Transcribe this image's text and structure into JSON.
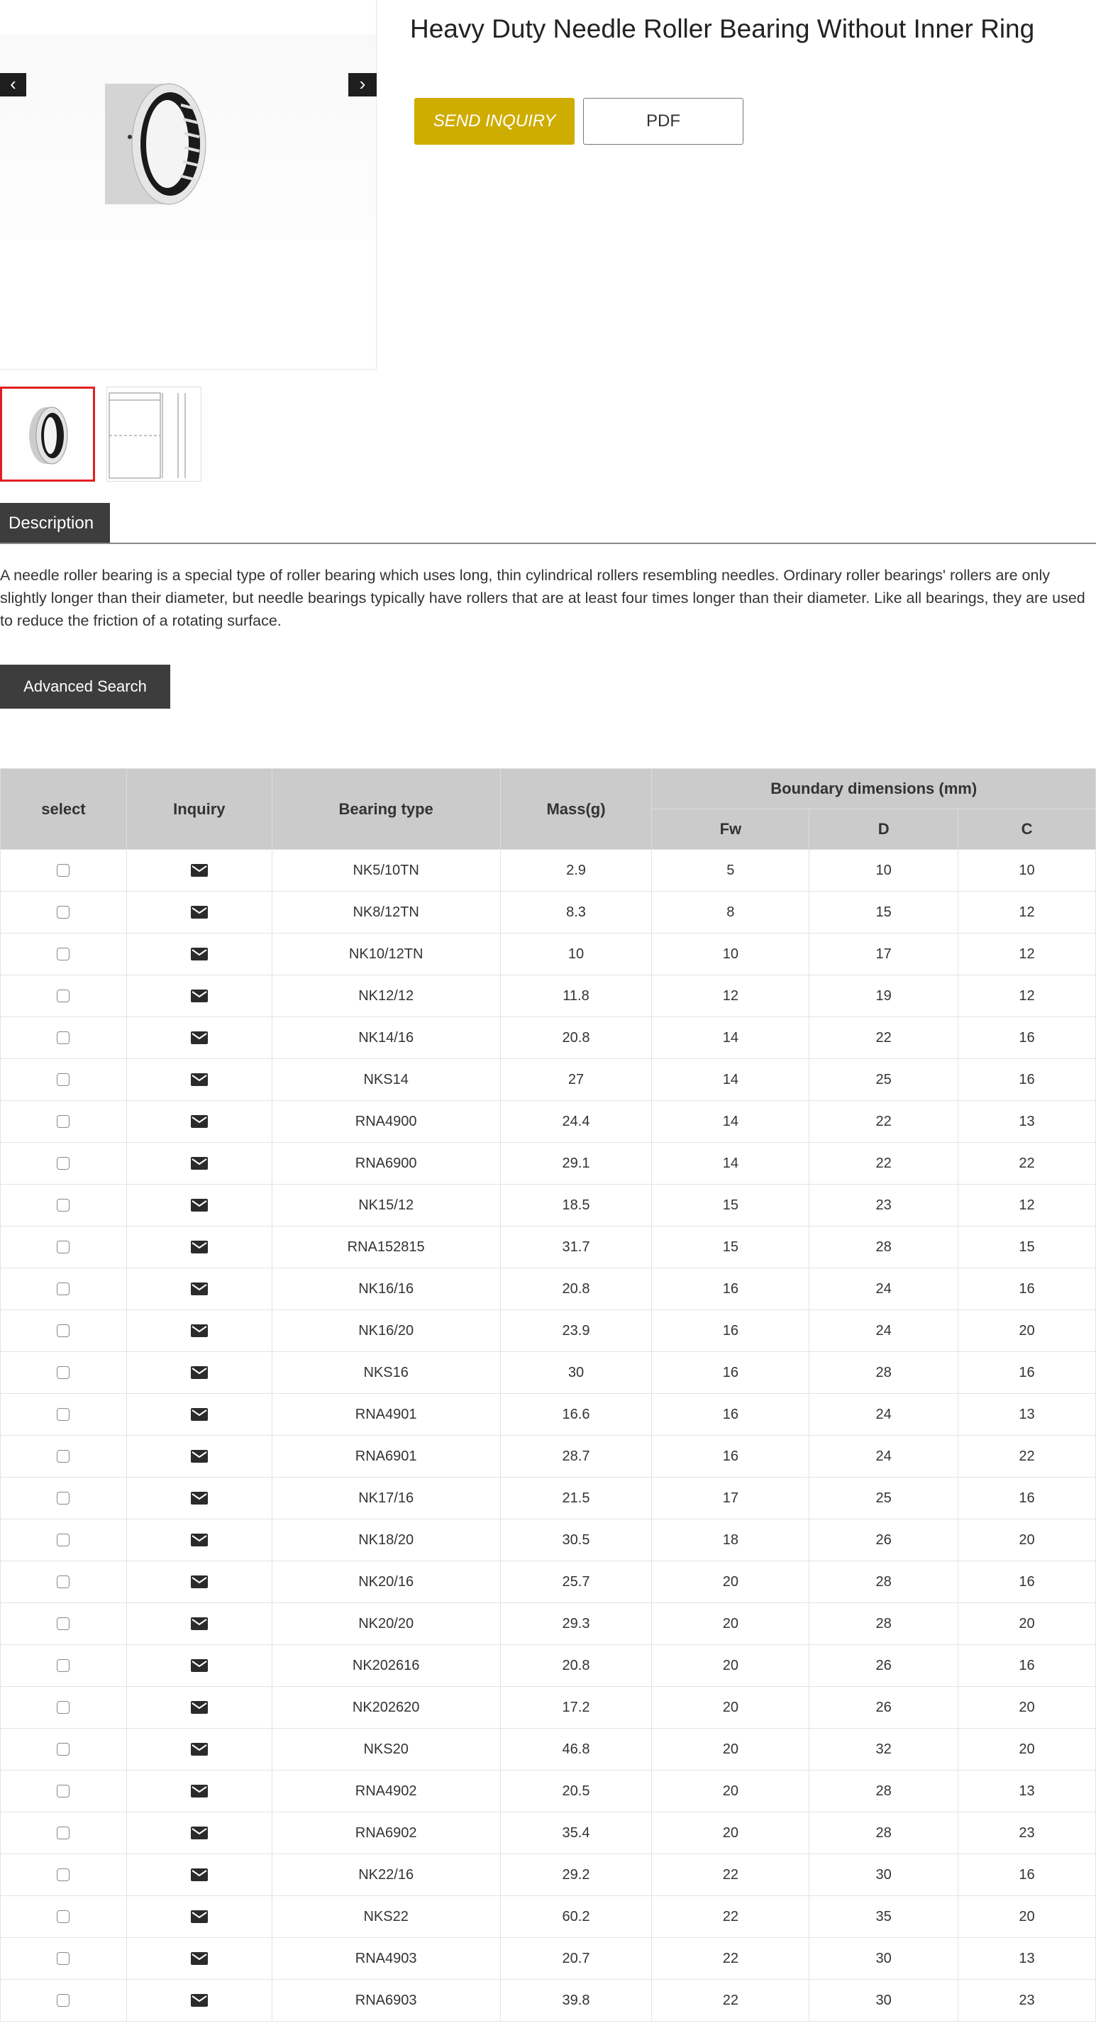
{
  "product": {
    "title": "Heavy Duty Needle Roller Bearing Without Inner Ring",
    "send_inquiry_label": "SEND INQUIRY",
    "pdf_label": "PDF",
    "accent_color": "#cfac00"
  },
  "gallery": {
    "prev_icon": "chevron-left-icon",
    "next_icon": "chevron-right-icon",
    "prev": "‹",
    "next": "›"
  },
  "tabs": {
    "description": "Description"
  },
  "description": "A needle roller bearing is a special type of roller bearing which uses long, thin cylindrical rollers resembling needles. Ordinary roller bearings' rollers are only slightly longer than their diameter, but needle bearings typically have rollers that are at least four times longer than their diameter. Like all bearings, they are used to reduce the friction of a rotating surface.",
  "advanced_search_label": "Advanced Search",
  "table": {
    "headers": {
      "select": "select",
      "inquiry": "Inquiry",
      "type": "Bearing type",
      "mass": "Mass(g)",
      "boundary": "Boundary dimensions (mm)",
      "fw": "Fw",
      "d": "D",
      "c": "C"
    },
    "rows": [
      [
        "NK5/10TN",
        "2.9",
        "5",
        "10",
        "10"
      ],
      [
        "NK8/12TN",
        "8.3",
        "8",
        "15",
        "12"
      ],
      [
        "NK10/12TN",
        "10",
        "10",
        "17",
        "12"
      ],
      [
        "NK12/12",
        "11.8",
        "12",
        "19",
        "12"
      ],
      [
        "NK14/16",
        "20.8",
        "14",
        "22",
        "16"
      ],
      [
        "NKS14",
        "27",
        "14",
        "25",
        "16"
      ],
      [
        "RNA4900",
        "24.4",
        "14",
        "22",
        "13"
      ],
      [
        "RNA6900",
        "29.1",
        "14",
        "22",
        "22"
      ],
      [
        "NK15/12",
        "18.5",
        "15",
        "23",
        "12"
      ],
      [
        "RNA152815",
        "31.7",
        "15",
        "28",
        "15"
      ],
      [
        "NK16/16",
        "20.8",
        "16",
        "24",
        "16"
      ],
      [
        "NK16/20",
        "23.9",
        "16",
        "24",
        "20"
      ],
      [
        "NKS16",
        "30",
        "16",
        "28",
        "16"
      ],
      [
        "RNA4901",
        "16.6",
        "16",
        "24",
        "13"
      ],
      [
        "RNA6901",
        "28.7",
        "16",
        "24",
        "22"
      ],
      [
        "NK17/16",
        "21.5",
        "17",
        "25",
        "16"
      ],
      [
        "NK18/20",
        "30.5",
        "18",
        "26",
        "20"
      ],
      [
        "NK20/16",
        "25.7",
        "20",
        "28",
        "16"
      ],
      [
        "NK20/20",
        "29.3",
        "20",
        "28",
        "20"
      ],
      [
        "NK202616",
        "20.8",
        "20",
        "26",
        "16"
      ],
      [
        "NK202620",
        "17.2",
        "20",
        "26",
        "20"
      ],
      [
        "NKS20",
        "46.8",
        "20",
        "32",
        "20"
      ],
      [
        "RNA4902",
        "20.5",
        "20",
        "28",
        "13"
      ],
      [
        "RNA6902",
        "35.4",
        "20",
        "28",
        "23"
      ],
      [
        "NK22/16",
        "29.2",
        "22",
        "30",
        "16"
      ],
      [
        "NKS22",
        "60.2",
        "22",
        "35",
        "20"
      ],
      [
        "RNA4903",
        "20.7",
        "22",
        "30",
        "13"
      ],
      [
        "RNA6903",
        "39.8",
        "22",
        "30",
        "23"
      ]
    ]
  }
}
